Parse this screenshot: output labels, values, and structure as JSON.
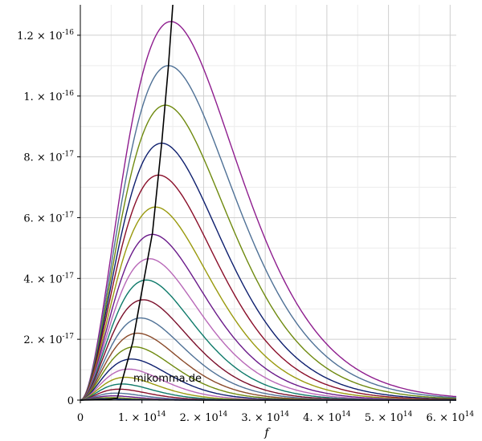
{
  "chart_data": {
    "type": "line",
    "title": "",
    "xlabel": "f",
    "ylabel": "",
    "xlim": [
      0,
      610000000000000.0
    ],
    "ylim": [
      0,
      1.3e-16
    ],
    "grid": true,
    "x_ticks": [
      {
        "value": 0,
        "mantissa": "0",
        "exponent": ""
      },
      {
        "value": 100000000000000.0,
        "mantissa": "1. × 10",
        "exponent": "14"
      },
      {
        "value": 200000000000000.0,
        "mantissa": "2. × 10",
        "exponent": "14"
      },
      {
        "value": 300000000000000.0,
        "mantissa": "3. × 10",
        "exponent": "14"
      },
      {
        "value": 400000000000000.0,
        "mantissa": "4. × 10",
        "exponent": "14"
      },
      {
        "value": 500000000000000.0,
        "mantissa": "5. × 10",
        "exponent": "14"
      },
      {
        "value": 600000000000000.0,
        "mantissa": "6. × 10",
        "exponent": "14"
      }
    ],
    "y_ticks": [
      {
        "value": 0,
        "mantissa": "0",
        "exponent": ""
      },
      {
        "value": 2e-17,
        "mantissa": "2. × 10",
        "exponent": "-17"
      },
      {
        "value": 4e-17,
        "mantissa": "4. × 10",
        "exponent": "-17"
      },
      {
        "value": 6e-17,
        "mantissa": "6. × 10",
        "exponent": "-17"
      },
      {
        "value": 8e-17,
        "mantissa": "8. × 10",
        "exponent": "-17"
      },
      {
        "value": 1e-16,
        "mantissa": "1. × 10",
        "exponent": "-16"
      },
      {
        "value": 1.2e-16,
        "mantissa": "1.2 × 10",
        "exponent": "-16"
      }
    ],
    "series": [
      {
        "peak_x": 147000000000000.0,
        "peak_y": 1.245e-16,
        "color": "#8e1d8e"
      },
      {
        "peak_x": 143000000000000.0,
        "peak_y": 1.1e-16,
        "color": "#4f7196"
      },
      {
        "peak_x": 138000000000000.0,
        "peak_y": 9.7e-17,
        "color": "#6f8a0f"
      },
      {
        "peak_x": 132000000000000.0,
        "peak_y": 8.45e-17,
        "color": "#0e1f6e"
      },
      {
        "peak_x": 127000000000000.0,
        "peak_y": 7.4e-17,
        "color": "#8a0f2a"
      },
      {
        "peak_x": 122000000000000.0,
        "peak_y": 6.35e-17,
        "color": "#9a9a0e"
      },
      {
        "peak_x": 117000000000000.0,
        "peak_y": 5.45e-17,
        "color": "#6a1a8a"
      },
      {
        "peak_x": 112000000000000.0,
        "peak_y": 4.65e-17,
        "color": "#b868b8"
      },
      {
        "peak_x": 107000000000000.0,
        "peak_y": 3.95e-17,
        "color": "#0e7a6a"
      },
      {
        "peak_x": 102000000000000.0,
        "peak_y": 3.3e-17,
        "color": "#7a0e2a"
      },
      {
        "peak_x": 98000000000000.0,
        "peak_y": 2.7e-17,
        "color": "#4f7196"
      },
      {
        "peak_x": 93000000000000.0,
        "peak_y": 2.2e-17,
        "color": "#8a4a2a"
      },
      {
        "peak_x": 88000000000000.0,
        "peak_y": 1.75e-17,
        "color": "#6f8a0f"
      },
      {
        "peak_x": 83000000000000.0,
        "peak_y": 1.35e-17,
        "color": "#0e1f6e"
      },
      {
        "peak_x": 78000000000000.0,
        "peak_y": 1.02e-17,
        "color": "#b868b8"
      },
      {
        "peak_x": 73000000000000.0,
        "peak_y": 7.5e-18,
        "color": "#9a9a0e"
      },
      {
        "peak_x": 68000000000000.0,
        "peak_y": 5.3e-18,
        "color": "#0e7a6a"
      },
      {
        "peak_x": 63000000000000.0,
        "peak_y": 3.6e-18,
        "color": "#8a0f2a"
      },
      {
        "peak_x": 58000000000000.0,
        "peak_y": 2.3e-18,
        "color": "#4f7196"
      },
      {
        "peak_x": 53000000000000.0,
        "peak_y": 1.4e-18,
        "color": "#6a1a8a"
      },
      {
        "peak_x": 48000000000000.0,
        "peak_y": 8e-19,
        "color": "#6f8a0f"
      },
      {
        "peak_x": 43000000000000.0,
        "peak_y": 4e-19,
        "color": "#0e1f6e"
      }
    ],
    "peak_locus": {
      "color": "#000000",
      "x": [
        0,
        40000000000000.0,
        60000000000000.0,
        85000000000000.0,
        100000000000000.0,
        117000000000000.0,
        132000000000000.0,
        143000000000000.0,
        150000000000000.0
      ],
      "y": [
        0,
        1e-19,
        6e-19,
        1.9e-17,
        3.6e-17,
        5.5e-17,
        8.45e-17,
        1.1e-16,
        1.3e-16
      ]
    },
    "annotation": "mikomma.de"
  }
}
